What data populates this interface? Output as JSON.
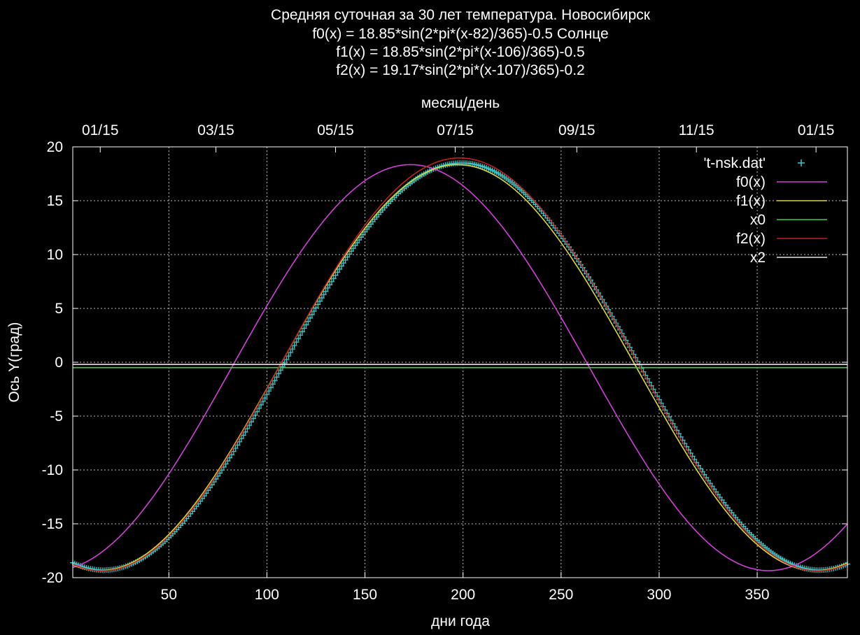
{
  "chart_data": {
    "type": "line",
    "title_lines": [
      "Средняя суточная за 30 лет температура. Новосибирск",
      "f0(x) = 18.85*sin(2*pi*(x-82)/365)-0.5 Солнце",
      "f1(x) = 18.85*sin(2*pi*(x-106)/365)-0.5",
      "f2(x) = 19.17*sin(2*pi*(x-107)/365)-0.2"
    ],
    "xlabel": "дни года",
    "ylabel": "Ось Y(град)",
    "x2label": "месяц/день",
    "xlim": [
      1,
      396
    ],
    "ylim": [
      -20,
      20
    ],
    "xticks": [
      "50",
      "100",
      "150",
      "200",
      "250",
      "300",
      "350"
    ],
    "yticks": [
      "20",
      "15",
      "10",
      "5",
      "0",
      "-5",
      "-10",
      "-15",
      "-20"
    ],
    "x2ticks": [
      {
        "label": "01/15",
        "day": 15
      },
      {
        "label": "03/15",
        "day": 74
      },
      {
        "label": "05/15",
        "day": 135
      },
      {
        "label": "07/15",
        "day": 196
      },
      {
        "label": "09/15",
        "day": 258
      },
      {
        "label": "11/15",
        "day": 319
      },
      {
        "label": "01/15",
        "day": 380
      }
    ],
    "grid": true,
    "legend_position": "top-right",
    "series": [
      {
        "name": "'t-nsk.dat'",
        "kind": "points",
        "color": "#3ec7c7",
        "amplitude": 18.9,
        "phase": 108,
        "offset": -0.4
      },
      {
        "name": "f0(x)",
        "kind": "line",
        "color": "#d040d8",
        "amplitude": 18.85,
        "phase": 82,
        "offset": -0.5
      },
      {
        "name": "f1(x)",
        "kind": "line",
        "color": "#d8d840",
        "amplitude": 18.85,
        "phase": 106,
        "offset": -0.5
      },
      {
        "name": "x0",
        "kind": "hline",
        "color": "#40d040",
        "value": -0.5
      },
      {
        "name": "f2(x)",
        "kind": "line",
        "color": "#c02020",
        "amplitude": 19.17,
        "phase": 107,
        "offset": -0.2
      },
      {
        "name": "x2",
        "kind": "hline",
        "color": "#e8e8e8",
        "value": -0.2
      }
    ]
  }
}
